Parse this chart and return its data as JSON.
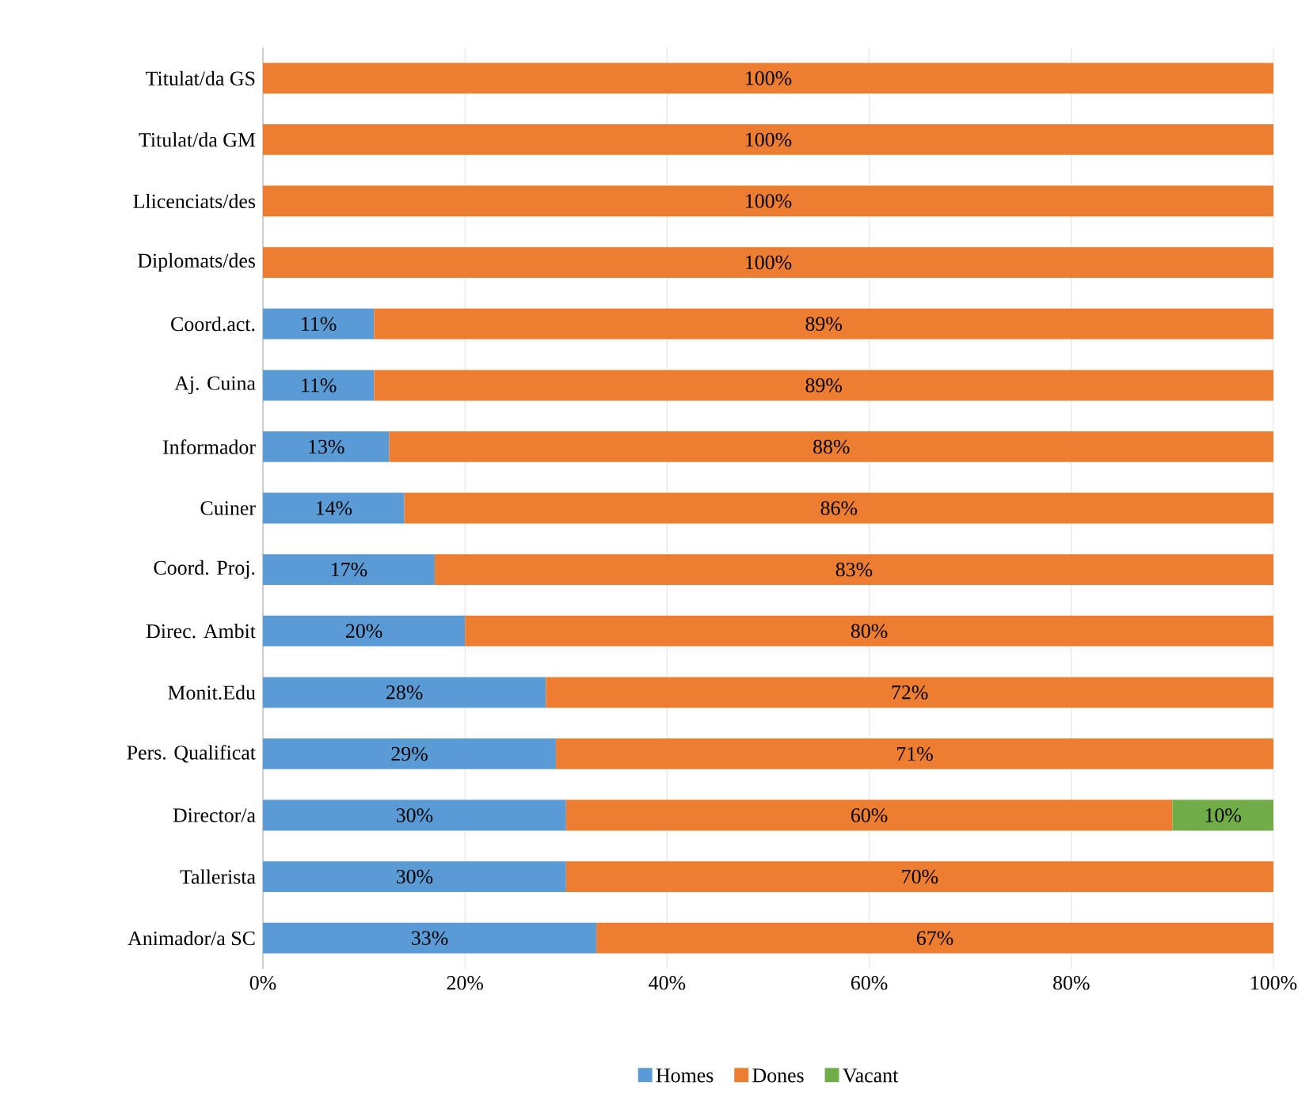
{
  "chart_data": {
    "type": "bar",
    "orientation": "horizontal",
    "stacked": true,
    "categories": [
      "Titulat/da GS",
      "Titulat/da GM",
      "Llicenciats/des",
      "Diplomats/des",
      "Coord.act.",
      "Aj. Cuina",
      "Informador",
      "Cuiner",
      "Coord. Proj.",
      "Direc. Ambit",
      "Monit.Edu",
      "Pers. Qualificat",
      "Director/a",
      "Tallerista",
      "Animador/a SC"
    ],
    "series": [
      {
        "name": "Homes",
        "color": "#5b9bd5",
        "values": [
          null,
          null,
          null,
          null,
          11,
          11,
          12.5,
          14,
          17,
          20,
          28,
          29,
          30,
          30,
          33
        ],
        "value_labels": [
          null,
          null,
          null,
          null,
          "11%",
          "11%",
          "13%",
          "14%",
          "17%",
          "20%",
          "28%",
          "29%",
          "30%",
          "30%",
          "33%"
        ]
      },
      {
        "name": "Dones",
        "color": "#ed7d31",
        "values": [
          100,
          100,
          100,
          100,
          89,
          89,
          87.5,
          86,
          83,
          80,
          72,
          71,
          60,
          70,
          67
        ],
        "value_labels": [
          "100%",
          "100%",
          "100%",
          "100%",
          "89%",
          "89%",
          "88%",
          "86%",
          "83%",
          "80%",
          "72%",
          "71%",
          "60%",
          "70%",
          "67%"
        ]
      },
      {
        "name": "Vacant",
        "color": "#70ad47",
        "values": [
          null,
          null,
          null,
          null,
          null,
          null,
          null,
          null,
          null,
          null,
          null,
          null,
          10,
          null,
          null
        ],
        "value_labels": [
          null,
          null,
          null,
          null,
          null,
          null,
          null,
          null,
          null,
          null,
          null,
          null,
          "10%",
          null,
          null
        ]
      }
    ],
    "xlim": [
      0,
      100
    ],
    "xticks": [
      {
        "value": 0,
        "label": "0%"
      },
      {
        "value": 20,
        "label": "20%"
      },
      {
        "value": 40,
        "label": "40%"
      },
      {
        "value": 60,
        "label": "60%"
      },
      {
        "value": 80,
        "label": "80%"
      },
      {
        "value": 100,
        "label": "100%"
      }
    ],
    "grid": "x",
    "legend": "bottom"
  }
}
